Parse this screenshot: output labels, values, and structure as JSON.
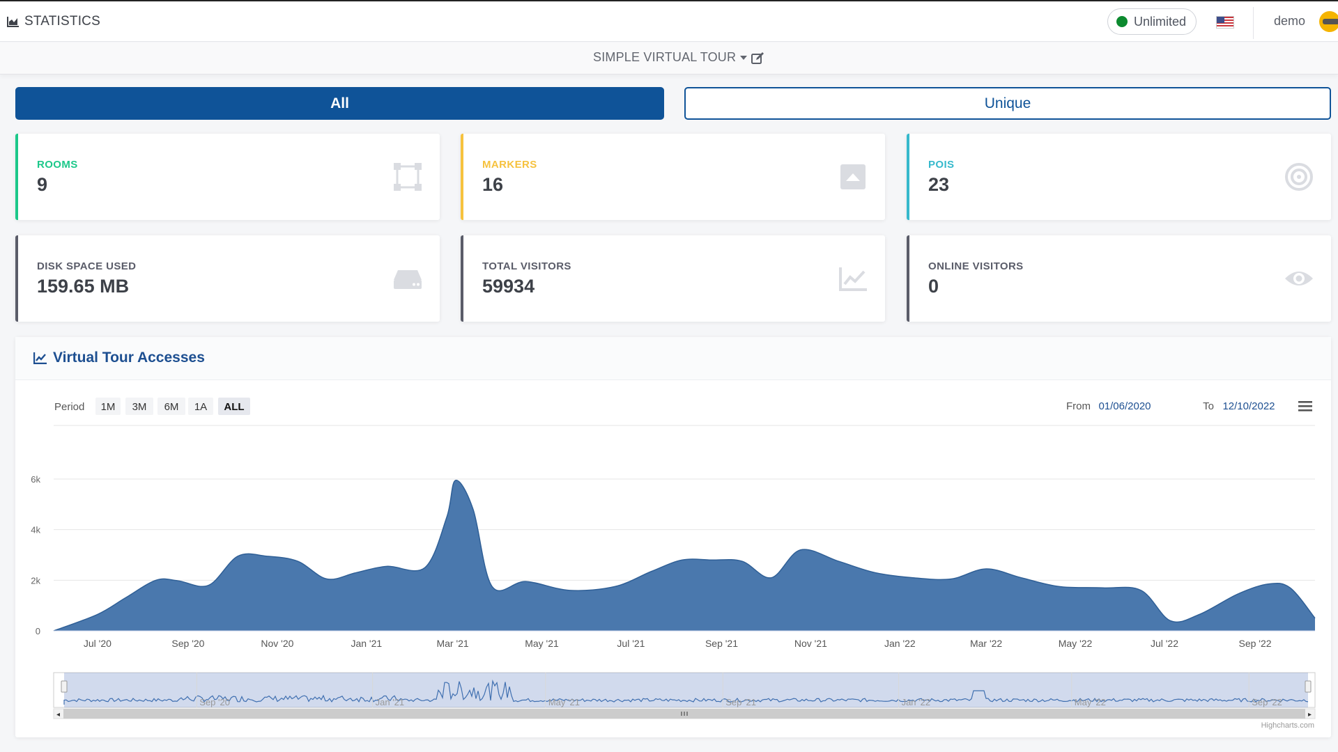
{
  "topbar": {
    "title": "STATISTICS",
    "plan": "Unlimited",
    "user": "demo"
  },
  "tour": {
    "name": "SIMPLE VIRTUAL TOUR"
  },
  "toggle": {
    "all_label": "All",
    "unique_label": "Unique"
  },
  "cards": [
    {
      "label": "ROOMS",
      "value": "9",
      "color": "#1cc88a",
      "icon": "vector-square-icon"
    },
    {
      "label": "MARKERS",
      "value": "16",
      "color": "#f6c23e",
      "icon": "caret-square-up-icon"
    },
    {
      "label": "POIS",
      "value": "23",
      "color": "#36b9cc",
      "icon": "bullseye-icon"
    },
    {
      "label": "DISK SPACE USED",
      "value": "159.65 MB",
      "color": "#5a5c69",
      "icon": "hdd-icon"
    },
    {
      "label": "TOTAL VISITORS",
      "value": "59934",
      "color": "#5a5c69",
      "icon": "chart-line-icon"
    },
    {
      "label": "ONLINE VISITORS",
      "value": "0",
      "color": "#5a5c69",
      "icon": "eye-icon"
    }
  ],
  "chart_panel": {
    "title": "Virtual Tour Accesses",
    "period_label": "Period",
    "ranges": [
      "1M",
      "3M",
      "6M",
      "1A",
      "ALL"
    ],
    "selected_range": "ALL",
    "from_label": "From",
    "from_value": "01/06/2020",
    "to_label": "To",
    "to_value": "12/10/2022",
    "credits": "Highcharts.com"
  },
  "chart_data": {
    "type": "area",
    "x_tick_labels": [
      "Jul '20",
      "Sep '20",
      "Nov '20",
      "Jan '21",
      "Mar '21",
      "May '21",
      "Jul '21",
      "Sep '21",
      "Nov '21",
      "Jan '22",
      "Mar '22",
      "May '22",
      "Jul '22",
      "Sep '22"
    ],
    "y_tick_labels": [
      "0",
      "2k",
      "4k",
      "6k"
    ],
    "ylim": [
      0,
      6000
    ],
    "x_range": [
      "2020-06-01",
      "2022-10-12"
    ],
    "grid": true,
    "color": "#4a78ad",
    "series": [
      {
        "points": [
          [
            "2020-06-01",
            0
          ],
          [
            "2020-07-01",
            650
          ],
          [
            "2020-07-20",
            1300
          ],
          [
            "2020-08-10",
            2000
          ],
          [
            "2020-08-25",
            1980
          ],
          [
            "2020-09-15",
            1800
          ],
          [
            "2020-10-05",
            2950
          ],
          [
            "2020-10-25",
            2950
          ],
          [
            "2020-11-15",
            2750
          ],
          [
            "2020-12-05",
            2050
          ],
          [
            "2020-12-25",
            2300
          ],
          [
            "2021-01-15",
            2550
          ],
          [
            "2021-02-10",
            2500
          ],
          [
            "2021-02-25",
            4500
          ],
          [
            "2021-03-03",
            5950
          ],
          [
            "2021-03-15",
            4800
          ],
          [
            "2021-03-28",
            1750
          ],
          [
            "2021-04-20",
            1950
          ],
          [
            "2021-05-20",
            1600
          ],
          [
            "2021-06-20",
            1750
          ],
          [
            "2021-07-15",
            2350
          ],
          [
            "2021-08-05",
            2800
          ],
          [
            "2021-08-25",
            2800
          ],
          [
            "2021-09-15",
            2750
          ],
          [
            "2021-10-05",
            2100
          ],
          [
            "2021-10-25",
            3200
          ],
          [
            "2021-11-20",
            2750
          ],
          [
            "2021-12-15",
            2300
          ],
          [
            "2022-01-10",
            2100
          ],
          [
            "2022-02-05",
            2050
          ],
          [
            "2022-03-01",
            2450
          ],
          [
            "2022-03-25",
            2100
          ],
          [
            "2022-04-20",
            1750
          ],
          [
            "2022-05-20",
            1700
          ],
          [
            "2022-06-15",
            1600
          ],
          [
            "2022-07-05",
            400
          ],
          [
            "2022-07-25",
            650
          ],
          [
            "2022-08-20",
            1450
          ],
          [
            "2022-09-10",
            1850
          ],
          [
            "2022-09-25",
            1700
          ],
          [
            "2022-10-12",
            500
          ]
        ]
      }
    ],
    "navigator_tick_labels": [
      "Sep '20",
      "Jan '21",
      "May '21",
      "Sep '21",
      "Jan '22",
      "May '22",
      "Sep '22"
    ]
  }
}
